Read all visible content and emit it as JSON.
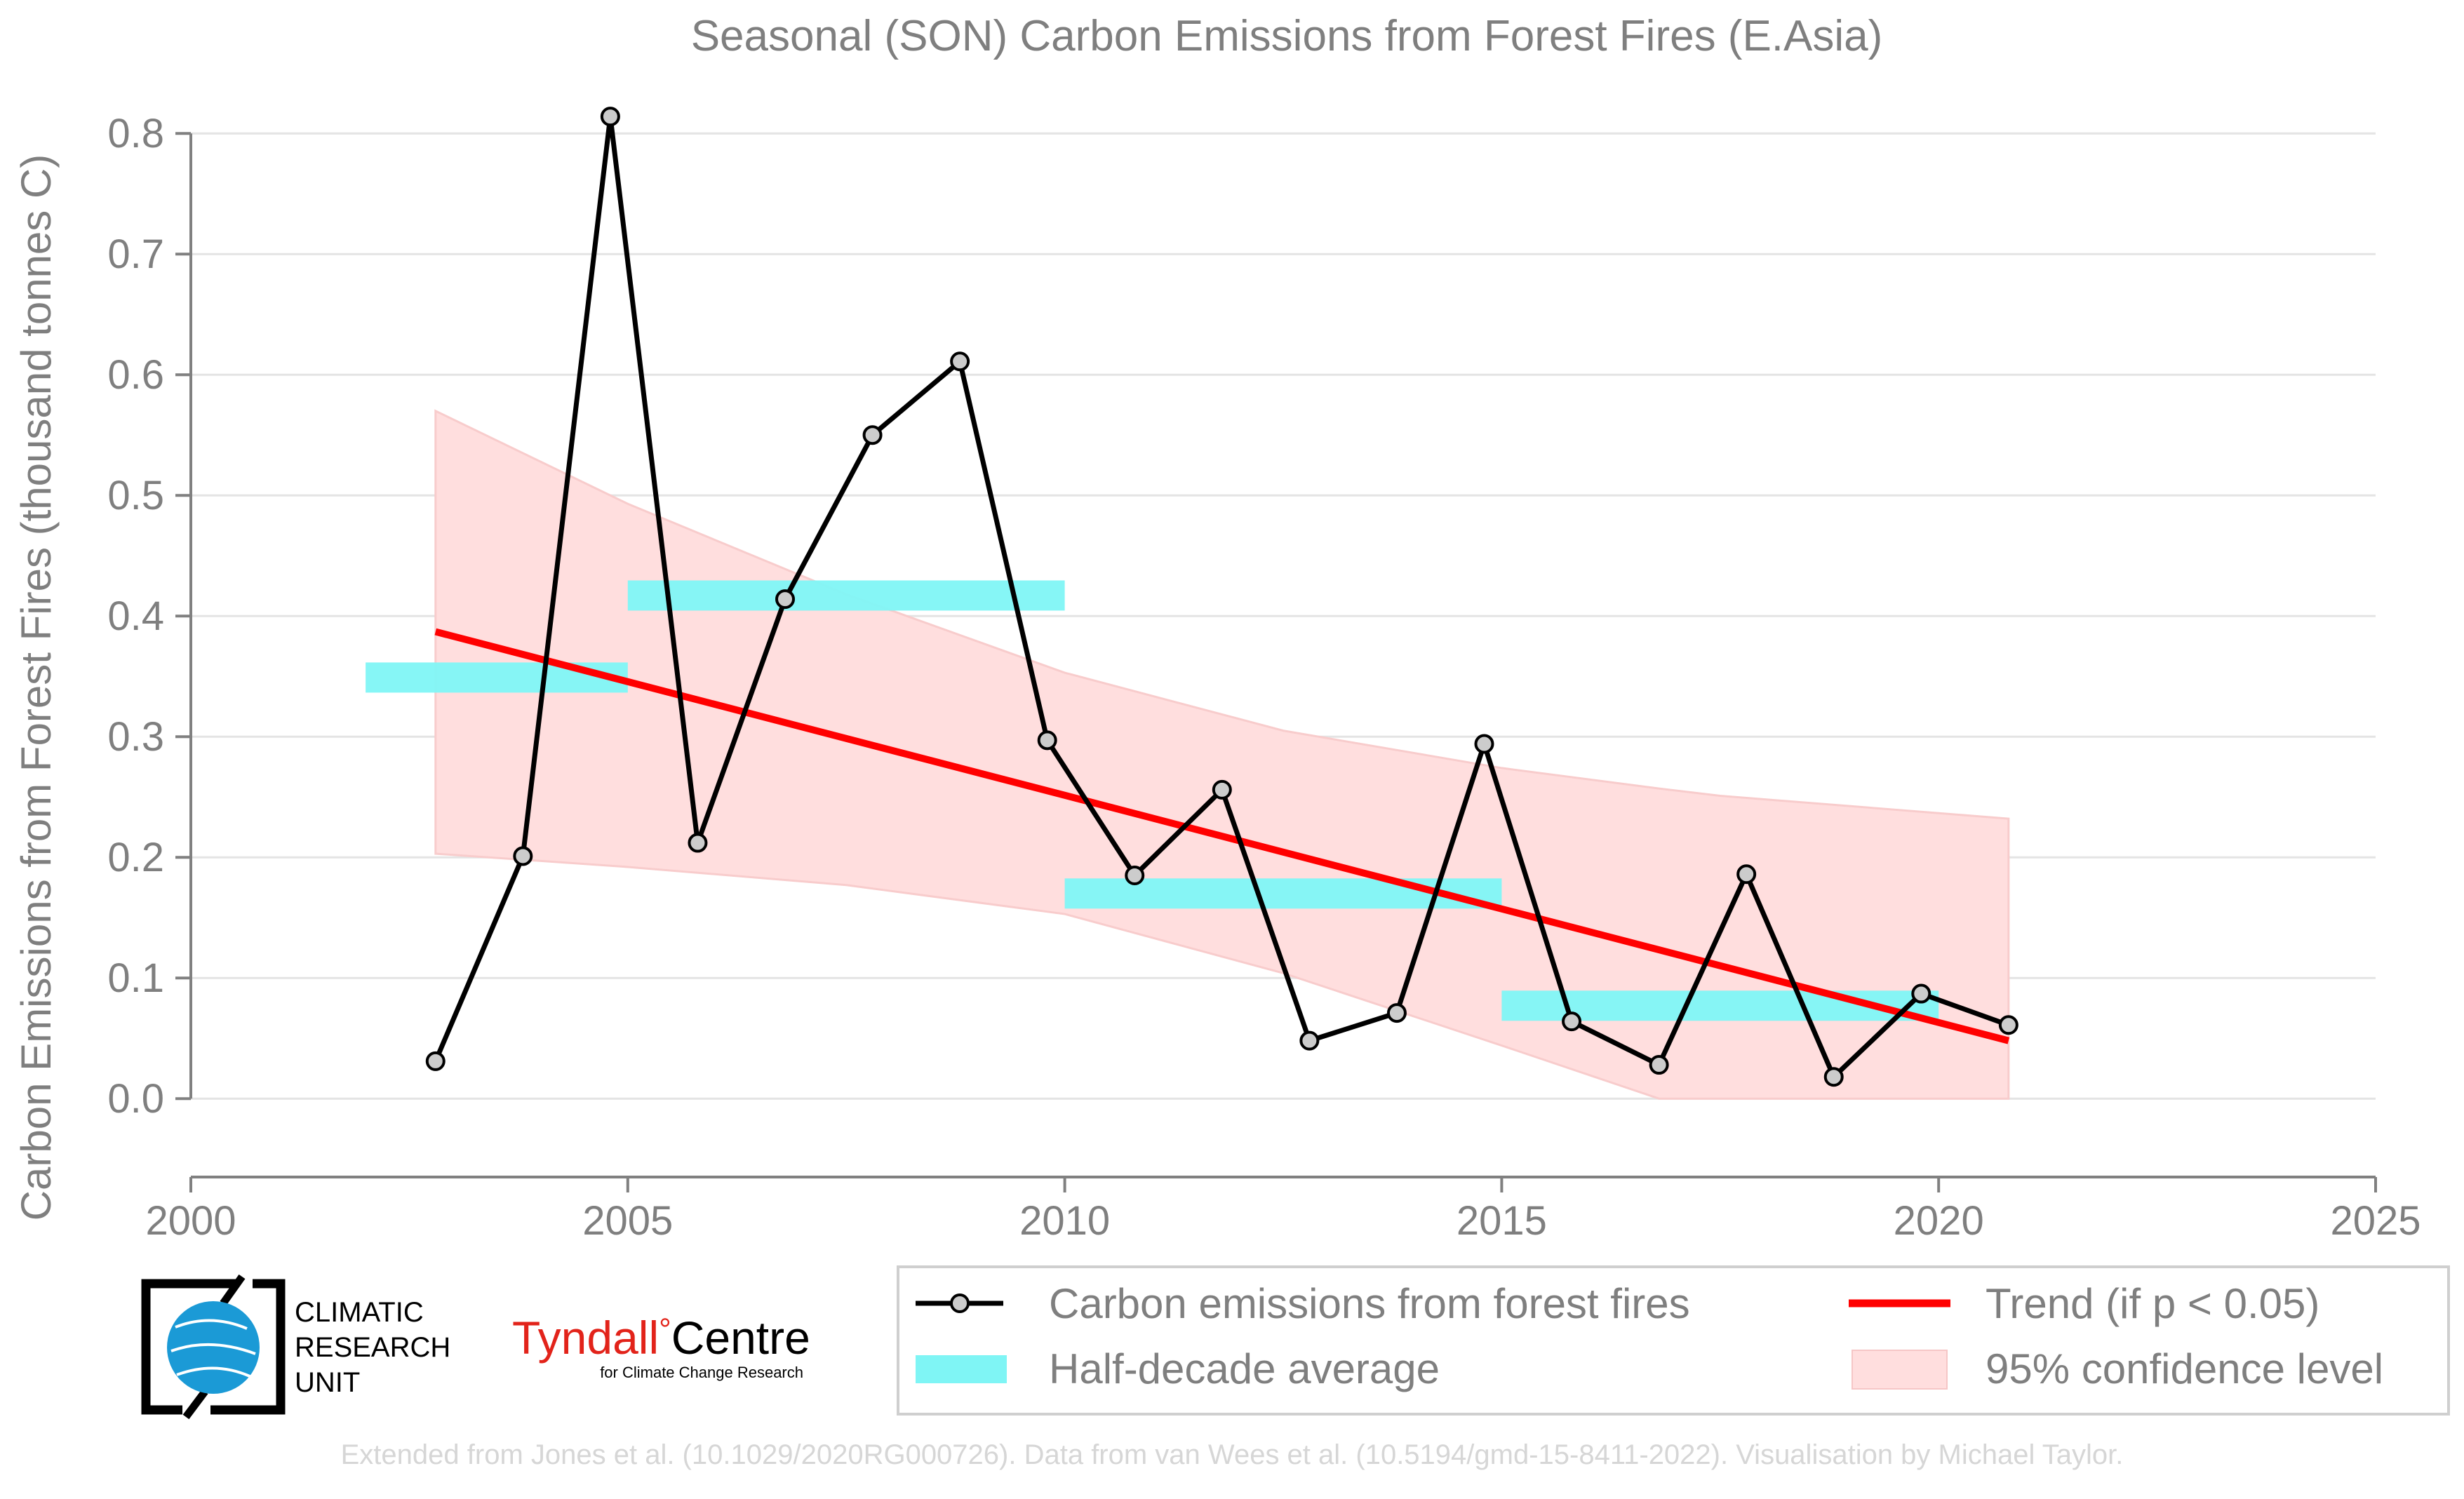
{
  "chart_data": {
    "type": "line",
    "title": "Seasonal (SON) Carbon Emissions from Forest Fires (E.Asia)",
    "ylabel": "Carbon Emissions from Forest Fires (thousand tonnes C)",
    "xlabel": "",
    "xlim": [
      2000,
      2025
    ],
    "ylim": [
      -0.065,
      0.835
    ],
    "x_ticks": [
      2000,
      2005,
      2010,
      2015,
      2020,
      2025
    ],
    "y_ticks": [
      0.0,
      0.1,
      0.2,
      0.3,
      0.4,
      0.5,
      0.6,
      0.7,
      0.8
    ],
    "grid": "horizontal",
    "series": [
      {
        "name": "Carbon emissions from forest fires",
        "color": "#000000",
        "marker_fill": "#cccccc",
        "x": [
          2002.8,
          2003.8,
          2004.8,
          2005.8,
          2006.8,
          2007.8,
          2008.8,
          2009.8,
          2010.8,
          2011.8,
          2012.8,
          2013.8,
          2014.8,
          2015.8,
          2016.8,
          2017.8,
          2018.8,
          2019.8,
          2020.8
        ],
        "y": [
          0.031,
          0.201,
          0.814,
          0.212,
          0.414,
          0.55,
          0.611,
          0.297,
          0.185,
          0.256,
          0.048,
          0.071,
          0.294,
          0.064,
          0.028,
          0.186,
          0.018,
          0.087,
          0.061
        ]
      }
    ],
    "half_decade_average": {
      "name": "Half-decade average",
      "color": "#7ff5f5",
      "segments": [
        {
          "x0": 2002,
          "x1": 2005,
          "y": 0.349
        },
        {
          "x0": 2005,
          "x1": 2010,
          "y": 0.417
        },
        {
          "x0": 2010,
          "x1": 2015,
          "y": 0.17
        },
        {
          "x0": 2015,
          "x1": 2020,
          "y": 0.077
        }
      ]
    },
    "trend": {
      "name": "Trend (if p < 0.05)",
      "color": "#ff0000",
      "x": [
        2002.8,
        2020.8
      ],
      "y": [
        0.387,
        0.048
      ]
    },
    "confidence_band": {
      "name": "95% confidence level",
      "color": "#ffdede",
      "x": [
        2002.8,
        2005,
        2007.5,
        2010,
        2012.5,
        2015,
        2016.8,
        2017.5,
        2020.8
      ],
      "upper": [
        0.57,
        0.493,
        0.418,
        0.353,
        0.305,
        0.274,
        0.257,
        0.251,
        0.232
      ],
      "lower": [
        0.203,
        0.192,
        0.177,
        0.153,
        0.104,
        0.044,
        0.0,
        0.0,
        0.0
      ]
    },
    "legend_placement": "bottom-right"
  },
  "logos": {
    "cru_lines": [
      "CLIMATIC",
      "RESEARCH",
      "UNIT"
    ],
    "tyndall_main": "Tyndall",
    "tyndall_degree": "°",
    "tyndall_centre": "Centre",
    "tyndall_sub": "for Climate Change Research"
  },
  "footer": {
    "note": "Extended from Jones et al. (10.1029/2020RG000726). Data from van Wees et al. (10.5194/gmd-15-8411-2022). Visualisation by Michael Taylor."
  },
  "colors": {
    "axis": "#808080",
    "grid": "#e4e4e4",
    "text": "#7f7f7f",
    "tyndall_red": "#e2231a"
  }
}
